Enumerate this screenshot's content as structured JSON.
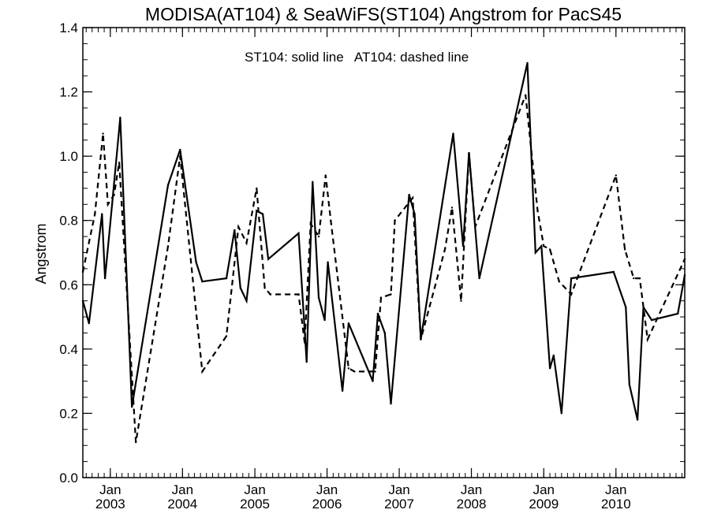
{
  "chart_data": {
    "type": "line",
    "title": "MODISA(AT104) & SeaWiFS(ST104)  Angstrom for PacS45",
    "xlabel": "",
    "ylabel": "Angstrom",
    "annotation": "ST104: solid line   AT104: dashed line",
    "ylim": [
      0.0,
      1.4
    ],
    "xlim": [
      "2002-08-15",
      "2010-12-15"
    ],
    "yticks": [
      "0.0",
      "0.2",
      "0.4",
      "0.6",
      "0.8",
      "1.0",
      "1.2",
      "1.4"
    ],
    "xticks": [
      {
        "month": "Jan",
        "year": "2003",
        "date": "2003-01-01"
      },
      {
        "month": "Jan",
        "year": "2004",
        "date": "2004-01-01"
      },
      {
        "month": "Jan",
        "year": "2005",
        "date": "2005-01-01"
      },
      {
        "month": "Jan",
        "year": "2006",
        "date": "2006-01-01"
      },
      {
        "month": "Jan",
        "year": "2007",
        "date": "2007-01-01"
      },
      {
        "month": "Jan",
        "year": "2008",
        "date": "2008-01-01"
      },
      {
        "month": "Jan",
        "year": "2009",
        "date": "2009-01-01"
      },
      {
        "month": "Jan",
        "year": "2010",
        "date": "2010-01-01"
      }
    ],
    "grid": false,
    "series": [
      {
        "name": "ST104",
        "style": "solid",
        "color": "#000000",
        "points": [
          [
            "2002-08-15",
            0.55
          ],
          [
            "2002-09-15",
            0.48
          ],
          [
            "2002-11-20",
            0.82
          ],
          [
            "2002-12-05",
            0.62
          ],
          [
            "2003-01-10",
            0.85
          ],
          [
            "2003-02-20",
            1.12
          ],
          [
            "2003-04-20",
            0.22
          ],
          [
            "2003-10-20",
            0.91
          ],
          [
            "2003-12-20",
            1.02
          ],
          [
            "2004-03-10",
            0.67
          ],
          [
            "2004-04-10",
            0.61
          ],
          [
            "2004-08-10",
            0.62
          ],
          [
            "2004-09-20",
            0.77
          ],
          [
            "2004-10-20",
            0.59
          ],
          [
            "2004-11-20",
            0.55
          ],
          [
            "2005-01-10",
            0.83
          ],
          [
            "2005-02-10",
            0.82
          ],
          [
            "2005-03-10",
            0.68
          ],
          [
            "2005-08-10",
            0.76
          ],
          [
            "2005-09-20",
            0.36
          ],
          [
            "2005-10-20",
            0.92
          ],
          [
            "2005-11-20",
            0.56
          ],
          [
            "2005-12-20",
            0.49
          ],
          [
            "2006-01-05",
            0.67
          ],
          [
            "2006-03-20",
            0.27
          ],
          [
            "2006-04-20",
            0.48
          ],
          [
            "2006-08-20",
            0.3
          ],
          [
            "2006-09-15",
            0.51
          ],
          [
            "2006-10-20",
            0.45
          ],
          [
            "2006-11-20",
            0.23
          ],
          [
            "2007-01-20",
            0.66
          ],
          [
            "2007-02-20",
            0.88
          ],
          [
            "2007-03-20",
            0.82
          ],
          [
            "2007-04-20",
            0.43
          ],
          [
            "2007-10-01",
            1.07
          ],
          [
            "2007-11-20",
            0.72
          ],
          [
            "2007-12-20",
            1.01
          ],
          [
            "2008-02-10",
            0.62
          ],
          [
            "2008-10-10",
            1.29
          ],
          [
            "2008-11-20",
            0.7
          ],
          [
            "2008-12-20",
            0.72
          ],
          [
            "2009-02-01",
            0.34
          ],
          [
            "2009-02-20",
            0.38
          ],
          [
            "2009-04-01",
            0.2
          ],
          [
            "2009-05-20",
            0.62
          ],
          [
            "2009-12-20",
            0.64
          ],
          [
            "2010-02-20",
            0.53
          ],
          [
            "2010-03-10",
            0.29
          ],
          [
            "2010-04-20",
            0.18
          ],
          [
            "2010-05-20",
            0.53
          ],
          [
            "2010-07-01",
            0.49
          ],
          [
            "2010-11-10",
            0.51
          ],
          [
            "2010-12-15",
            0.63
          ]
        ]
      },
      {
        "name": "AT104",
        "style": "dashed",
        "color": "#000000",
        "points": [
          [
            "2002-08-15",
            0.64
          ],
          [
            "2002-10-15",
            0.82
          ],
          [
            "2002-11-25",
            1.07
          ],
          [
            "2002-12-20",
            0.85
          ],
          [
            "2003-01-20",
            0.88
          ],
          [
            "2003-02-15",
            0.98
          ],
          [
            "2003-05-10",
            0.11
          ],
          [
            "2003-10-20",
            0.72
          ],
          [
            "2003-12-20",
            1.0
          ],
          [
            "2004-04-10",
            0.33
          ],
          [
            "2004-08-10",
            0.44
          ],
          [
            "2004-10-10",
            0.78
          ],
          [
            "2004-11-20",
            0.73
          ],
          [
            "2005-01-10",
            0.9
          ],
          [
            "2005-02-20",
            0.59
          ],
          [
            "2005-03-20",
            0.57
          ],
          [
            "2005-08-10",
            0.57
          ],
          [
            "2005-09-10",
            0.42
          ],
          [
            "2005-10-10",
            0.79
          ],
          [
            "2005-11-20",
            0.75
          ],
          [
            "2005-12-25",
            0.94
          ],
          [
            "2006-01-20",
            0.8
          ],
          [
            "2006-04-20",
            0.34
          ],
          [
            "2006-05-20",
            0.33
          ],
          [
            "2006-09-01",
            0.33
          ],
          [
            "2006-10-01",
            0.56
          ],
          [
            "2006-11-20",
            0.57
          ],
          [
            "2006-12-10",
            0.8
          ],
          [
            "2007-03-10",
            0.87
          ],
          [
            "2007-04-20",
            0.43
          ],
          [
            "2007-08-20",
            0.71
          ],
          [
            "2007-09-25",
            0.84
          ],
          [
            "2007-11-10",
            0.55
          ],
          [
            "2007-12-20",
            1.01
          ],
          [
            "2008-01-20",
            0.78
          ],
          [
            "2008-10-01",
            1.19
          ],
          [
            "2008-12-01",
            0.83
          ],
          [
            "2009-01-01",
            0.72
          ],
          [
            "2009-02-01",
            0.71
          ],
          [
            "2009-03-20",
            0.61
          ],
          [
            "2009-05-20",
            0.57
          ],
          [
            "2010-01-01",
            0.94
          ],
          [
            "2010-02-15",
            0.71
          ],
          [
            "2010-04-01",
            0.62
          ],
          [
            "2010-05-01",
            0.62
          ],
          [
            "2010-06-10",
            0.43
          ],
          [
            "2010-12-15",
            0.68
          ]
        ]
      }
    ]
  }
}
